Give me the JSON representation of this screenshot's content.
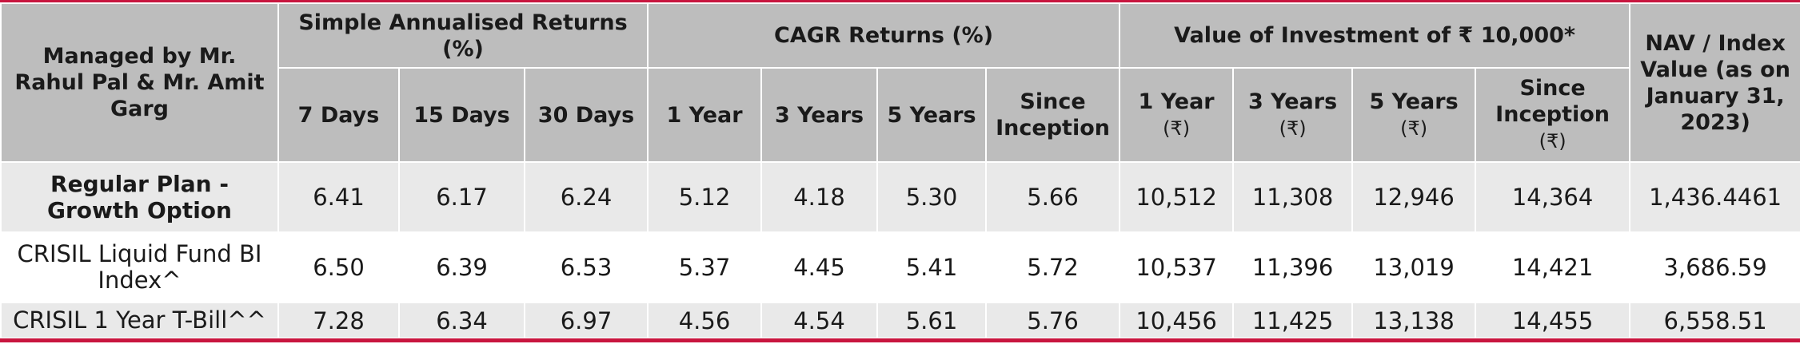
{
  "table": {
    "corner_header": "Managed by Mr. Rahul Pal & Mr. Amit Garg",
    "groups": {
      "simple": "Simple Annualised Returns (%)",
      "cagr": "CAGR Returns (%)",
      "value": "Value of Investment of ₹ 10,000*",
      "nav": "NAV / Index Value (as on January 31, 2023)"
    },
    "subheaders": {
      "simple": [
        "7 Days",
        "15 Days",
        "30 Days"
      ],
      "cagr": [
        "1 Year",
        "3 Years",
        "5 Years",
        "Since Inception"
      ],
      "value": [
        {
          "label": "1 Year",
          "unit": "(₹)"
        },
        {
          "label": "3 Years",
          "unit": "(₹)"
        },
        {
          "label": "5 Years",
          "unit": "(₹)"
        },
        {
          "label": "Since Inception",
          "unit": "(₹)"
        }
      ]
    },
    "rows": [
      {
        "label": "Regular Plan - Growth Option",
        "cells": [
          "6.41",
          "6.17",
          "6.24",
          "5.12",
          "4.18",
          "5.30",
          "5.66",
          "10,512",
          "11,308",
          "12,946",
          "14,364",
          "1,436.4461"
        ]
      },
      {
        "label": "CRISIL Liquid Fund BI Index^",
        "cells": [
          "6.50",
          "6.39",
          "6.53",
          "5.37",
          "4.45",
          "5.41",
          "5.72",
          "10,537",
          "11,396",
          "13,019",
          "14,421",
          "3,686.59"
        ]
      },
      {
        "label": "CRISIL 1 Year T-Bill^^",
        "cells": [
          "7.28",
          "6.34",
          "6.97",
          "4.56",
          "4.54",
          "5.61",
          "5.76",
          "10,456",
          "11,425",
          "13,138",
          "14,455",
          "6,558.51"
        ]
      }
    ]
  },
  "colors": {
    "accent": "#c8163f",
    "header_bg": "#bdbdbd",
    "shaded_row_bg": "#e9e9e9"
  }
}
